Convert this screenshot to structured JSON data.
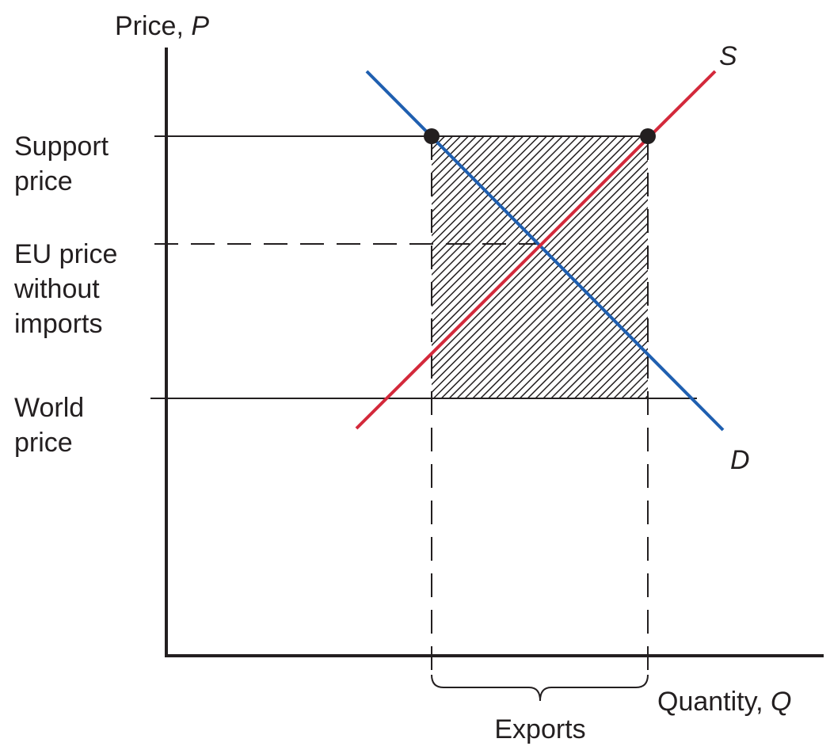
{
  "y_axis": {
    "label": "Price, ",
    "symbol": "P"
  },
  "x_axis": {
    "label": "Quantity, ",
    "symbol": "Q"
  },
  "price_levels": [
    {
      "lines": [
        "Support",
        "price"
      ]
    },
    {
      "lines": [
        "EU price",
        "without",
        "imports"
      ]
    },
    {
      "lines": [
        "World",
        "price"
      ]
    }
  ],
  "curves": {
    "supply": "S",
    "demand": "D"
  },
  "bracket_label": "Exports"
}
